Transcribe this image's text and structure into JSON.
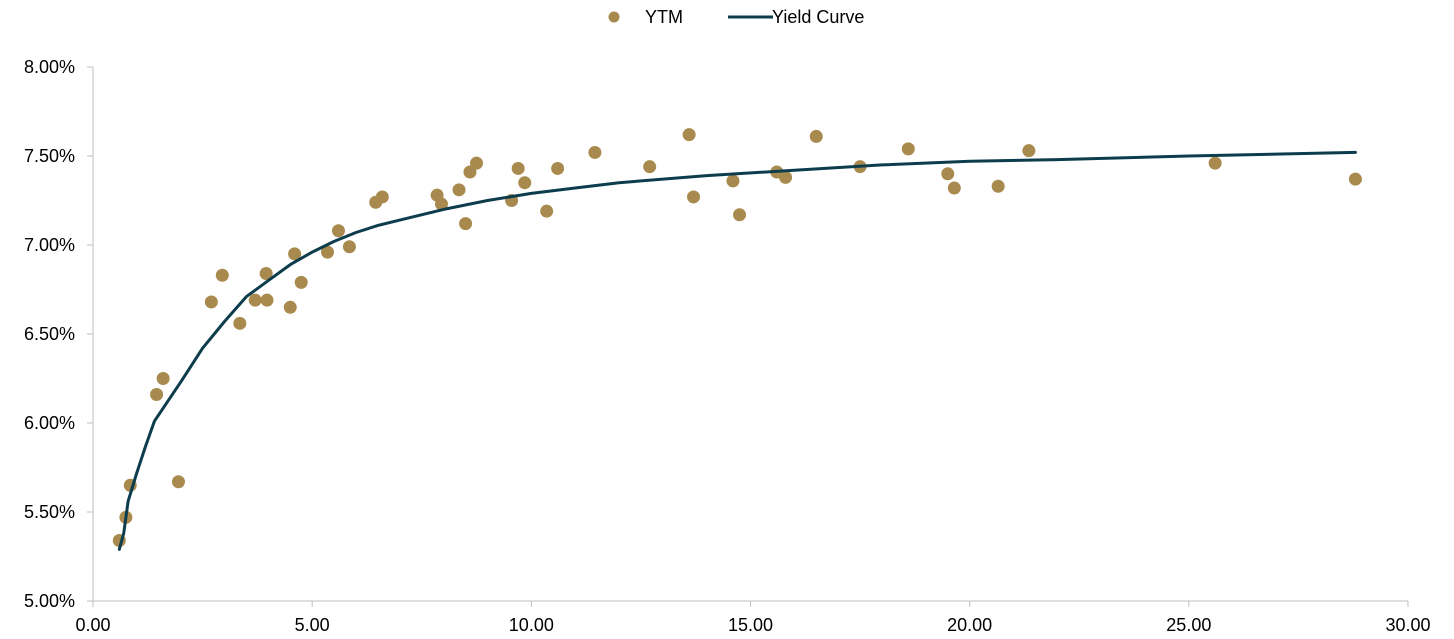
{
  "chart_data": {
    "type": "scatter",
    "title": "",
    "xlabel": "",
    "ylabel": "",
    "xlim": [
      0,
      30
    ],
    "ylim": [
      5.0,
      8.0
    ],
    "x_ticks": [
      "0.00",
      "5.00",
      "10.00",
      "15.00",
      "20.00",
      "25.00",
      "30.00"
    ],
    "y_ticks": [
      "5.00%",
      "5.50%",
      "6.00%",
      "6.50%",
      "7.00%",
      "7.50%",
      "8.00%"
    ],
    "grid": false,
    "legend_position": "top-center",
    "colors": {
      "ytm": "#A88A4E",
      "curve": "#0D3D4D",
      "axis": "#BFBFBF"
    },
    "series": [
      {
        "name": "YTM",
        "kind": "scatter",
        "points": [
          [
            0.6,
            5.34
          ],
          [
            0.75,
            5.47
          ],
          [
            0.85,
            5.65
          ],
          [
            1.45,
            6.16
          ],
          [
            1.6,
            6.25
          ],
          [
            1.95,
            5.67
          ],
          [
            2.7,
            6.68
          ],
          [
            2.95,
            6.83
          ],
          [
            3.35,
            6.56
          ],
          [
            3.7,
            6.69
          ],
          [
            3.95,
            6.84
          ],
          [
            3.97,
            6.69
          ],
          [
            4.5,
            6.65
          ],
          [
            4.6,
            6.95
          ],
          [
            4.75,
            6.79
          ],
          [
            5.35,
            6.96
          ],
          [
            5.6,
            7.08
          ],
          [
            5.85,
            6.99
          ],
          [
            6.45,
            7.24
          ],
          [
            6.6,
            7.27
          ],
          [
            7.85,
            7.28
          ],
          [
            7.95,
            7.23
          ],
          [
            8.35,
            7.31
          ],
          [
            8.5,
            7.12
          ],
          [
            8.6,
            7.41
          ],
          [
            8.75,
            7.46
          ],
          [
            9.55,
            7.25
          ],
          [
            9.7,
            7.43
          ],
          [
            9.85,
            7.35
          ],
          [
            10.35,
            7.19
          ],
          [
            10.6,
            7.43
          ],
          [
            11.45,
            7.52
          ],
          [
            12.7,
            7.44
          ],
          [
            13.6,
            7.62
          ],
          [
            13.7,
            7.27
          ],
          [
            14.6,
            7.36
          ],
          [
            14.75,
            7.17
          ],
          [
            15.6,
            7.41
          ],
          [
            15.8,
            7.38
          ],
          [
            16.5,
            7.61
          ],
          [
            17.5,
            7.44
          ],
          [
            18.6,
            7.54
          ],
          [
            19.5,
            7.4
          ],
          [
            19.65,
            7.32
          ],
          [
            20.65,
            7.33
          ],
          [
            21.35,
            7.53
          ],
          [
            25.6,
            7.46
          ],
          [
            28.8,
            7.37
          ]
        ]
      },
      {
        "name": "Yield Curve",
        "kind": "line",
        "points": [
          [
            0.6,
            5.29
          ],
          [
            0.7,
            5.38
          ],
          [
            0.8,
            5.56
          ],
          [
            1.0,
            5.72
          ],
          [
            1.2,
            5.87
          ],
          [
            1.4,
            6.01
          ],
          [
            2.0,
            6.23
          ],
          [
            2.5,
            6.42
          ],
          [
            3.0,
            6.57
          ],
          [
            3.5,
            6.71
          ],
          [
            4.0,
            6.8
          ],
          [
            4.5,
            6.89
          ],
          [
            5.0,
            6.96
          ],
          [
            5.5,
            7.02
          ],
          [
            6.0,
            7.07
          ],
          [
            6.5,
            7.11
          ],
          [
            7.0,
            7.14
          ],
          [
            8.0,
            7.2
          ],
          [
            9.0,
            7.25
          ],
          [
            10.0,
            7.29
          ],
          [
            11.0,
            7.32
          ],
          [
            12.0,
            7.35
          ],
          [
            14.0,
            7.39
          ],
          [
            16.0,
            7.42
          ],
          [
            18.0,
            7.45
          ],
          [
            20.0,
            7.47
          ],
          [
            22.0,
            7.48
          ],
          [
            25.0,
            7.5
          ],
          [
            28.8,
            7.52
          ]
        ]
      }
    ]
  }
}
